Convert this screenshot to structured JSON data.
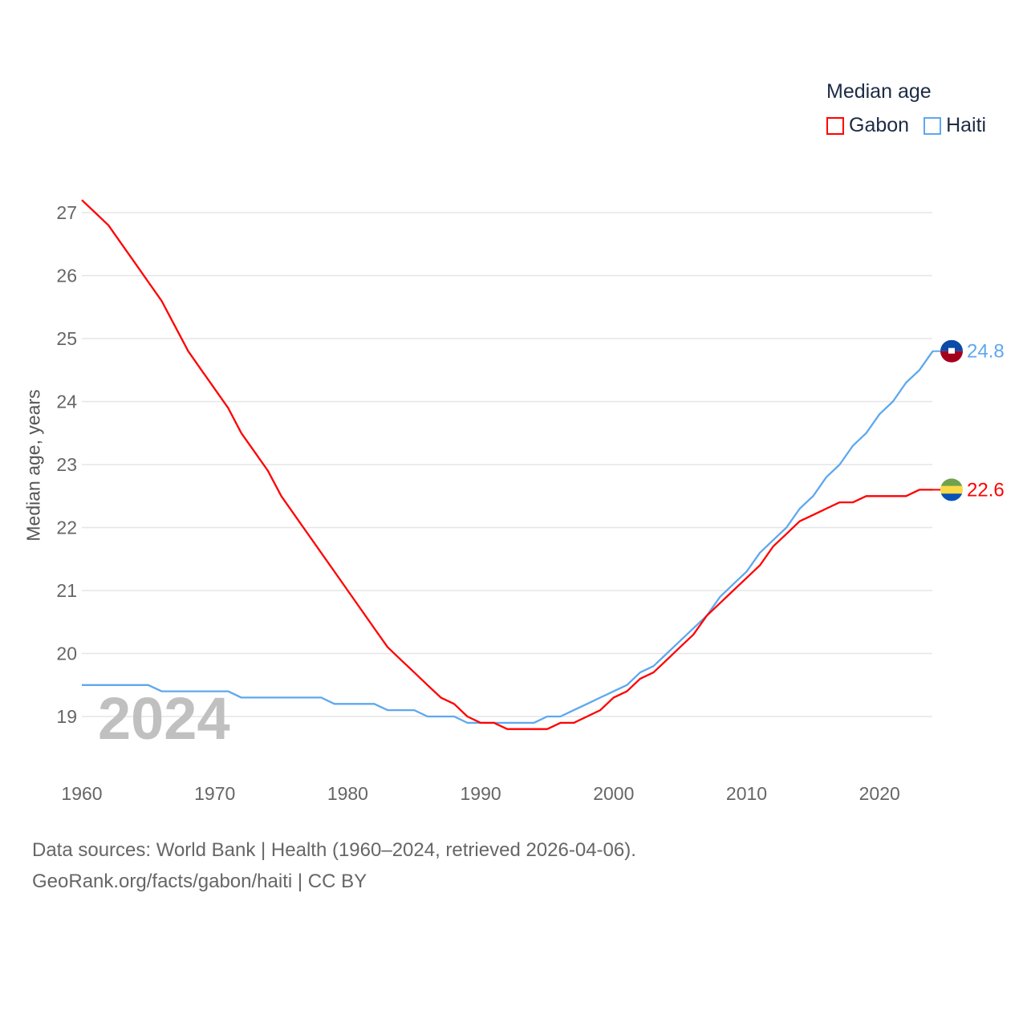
{
  "legend": {
    "title": "Median age",
    "items": [
      {
        "name": "Gabon",
        "color": "#ff0000"
      },
      {
        "name": "Haiti",
        "color": "#5ea8ee"
      }
    ]
  },
  "footer": {
    "line1": "Data sources: World Bank | Health (1960–2024, retrieved 2026-04-06).",
    "line2": "GeoRank.org/facts/gabon/haiti | CC BY"
  },
  "chart_data": {
    "type": "line",
    "title": "Median age",
    "xlabel": "",
    "ylabel": "Median age, years",
    "year_watermark": "2024",
    "xlim": [
      1960,
      2024
    ],
    "ylim": [
      18.2,
      27.4
    ],
    "xticks": [
      1960,
      1970,
      1980,
      1990,
      2000,
      2010,
      2020
    ],
    "yticks": [
      19,
      20,
      21,
      22,
      23,
      24,
      25,
      26,
      27
    ],
    "grid": true,
    "legend_position": "top-right",
    "x": [
      1960,
      1961,
      1962,
      1963,
      1964,
      1965,
      1966,
      1967,
      1968,
      1969,
      1970,
      1971,
      1972,
      1973,
      1974,
      1975,
      1976,
      1977,
      1978,
      1979,
      1980,
      1981,
      1982,
      1983,
      1984,
      1985,
      1986,
      1987,
      1988,
      1989,
      1990,
      1991,
      1992,
      1993,
      1994,
      1995,
      1996,
      1997,
      1998,
      1999,
      2000,
      2001,
      2002,
      2003,
      2004,
      2005,
      2006,
      2007,
      2008,
      2009,
      2010,
      2011,
      2012,
      2013,
      2014,
      2015,
      2016,
      2017,
      2018,
      2019,
      2020,
      2021,
      2022,
      2023,
      2024
    ],
    "series": [
      {
        "name": "Gabon",
        "color": "#ff0000",
        "end_label": "22.6",
        "flag": "gabon-flag",
        "values": [
          27.2,
          27.0,
          26.8,
          26.5,
          26.2,
          25.9,
          25.6,
          25.2,
          24.8,
          24.5,
          24.2,
          23.9,
          23.5,
          23.2,
          22.9,
          22.5,
          22.2,
          21.9,
          21.6,
          21.3,
          21.0,
          20.7,
          20.4,
          20.1,
          19.9,
          19.7,
          19.5,
          19.3,
          19.2,
          19.0,
          18.9,
          18.9,
          18.8,
          18.8,
          18.8,
          18.8,
          18.9,
          18.9,
          19.0,
          19.1,
          19.3,
          19.4,
          19.6,
          19.7,
          19.9,
          20.1,
          20.3,
          20.6,
          20.8,
          21.0,
          21.2,
          21.4,
          21.7,
          21.9,
          22.1,
          22.2,
          22.3,
          22.4,
          22.4,
          22.5,
          22.5,
          22.5,
          22.5,
          22.6,
          22.6
        ]
      },
      {
        "name": "Haiti",
        "color": "#5ea8ee",
        "end_label": "24.8",
        "flag": "haiti-flag",
        "values": [
          19.5,
          19.5,
          19.5,
          19.5,
          19.5,
          19.5,
          19.4,
          19.4,
          19.4,
          19.4,
          19.4,
          19.4,
          19.3,
          19.3,
          19.3,
          19.3,
          19.3,
          19.3,
          19.3,
          19.2,
          19.2,
          19.2,
          19.2,
          19.1,
          19.1,
          19.1,
          19.0,
          19.0,
          19.0,
          18.9,
          18.9,
          18.9,
          18.9,
          18.9,
          18.9,
          19.0,
          19.0,
          19.1,
          19.2,
          19.3,
          19.4,
          19.5,
          19.7,
          19.8,
          20.0,
          20.2,
          20.4,
          20.6,
          20.9,
          21.1,
          21.3,
          21.6,
          21.8,
          22.0,
          22.3,
          22.5,
          22.8,
          23.0,
          23.3,
          23.5,
          23.8,
          24.0,
          24.3,
          24.5,
          24.8
        ]
      }
    ]
  }
}
